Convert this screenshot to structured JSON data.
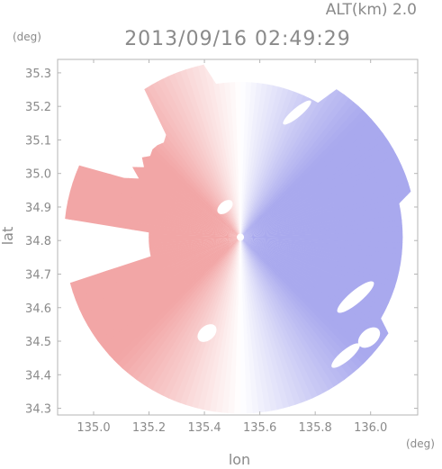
{
  "chart_data": {
    "type": "heatmap",
    "title": "2013/09/16 02:49:29",
    "altitude_label": "ALT(km) 2.0",
    "xlabel": "lon",
    "ylabel": "lat",
    "x_unit": "(deg)",
    "y_unit": "(deg)",
    "xlim": [
      134.87,
      136.17
    ],
    "ylim": [
      34.28,
      35.34
    ],
    "x_ticks": [
      "135.0",
      "135.2",
      "135.4",
      "135.6",
      "135.8",
      "136.0"
    ],
    "y_ticks": [
      "34.3",
      "34.4",
      "34.5",
      "34.6",
      "34.7",
      "34.8",
      "34.9",
      "35.0",
      "35.1",
      "35.2",
      "35.3"
    ],
    "radar_center": {
      "lon": 135.53,
      "lat": 34.81
    },
    "field": "doppler velocity (red: receding west side, blue: approaching east side)",
    "colors": {
      "positive": "#f2a6a6",
      "negative": "#a9a9ee",
      "zero": "#ffffff"
    },
    "grid": false
  }
}
